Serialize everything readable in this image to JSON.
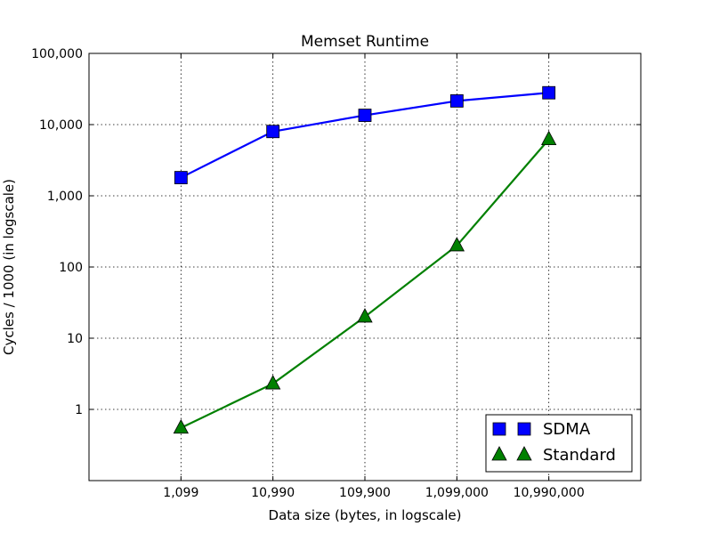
{
  "chart_data": {
    "type": "line",
    "title": "Memset Runtime",
    "xlabel": "Data size (bytes, in logscale)",
    "ylabel": "Cycles / 1000 (in logscale)",
    "x_scale": "log",
    "y_scale": "log",
    "categories": [
      "1,099",
      "10,990",
      "109,900",
      "1,099,000",
      "10,990,000"
    ],
    "x": [
      1099,
      10990,
      109900,
      1099000,
      10990000
    ],
    "xlim": [
      109.9,
      109900000
    ],
    "ylim": [
      0.1,
      100000
    ],
    "y_ticks": [
      1,
      10,
      100,
      1000,
      10000,
      100000
    ],
    "y_tick_labels": [
      "1",
      "10",
      "100",
      "1,000",
      "10,000",
      "100,000"
    ],
    "grid": true,
    "legend_position": "lower-right",
    "series": [
      {
        "name": "SDMA",
        "marker": "square",
        "color": "#0000ff",
        "values": [
          1800,
          8000,
          13500,
          21500,
          28000
        ]
      },
      {
        "name": "Standard",
        "marker": "triangle",
        "color": "#008000",
        "values": [
          0.55,
          2.3,
          20,
          200,
          6200
        ]
      }
    ]
  }
}
